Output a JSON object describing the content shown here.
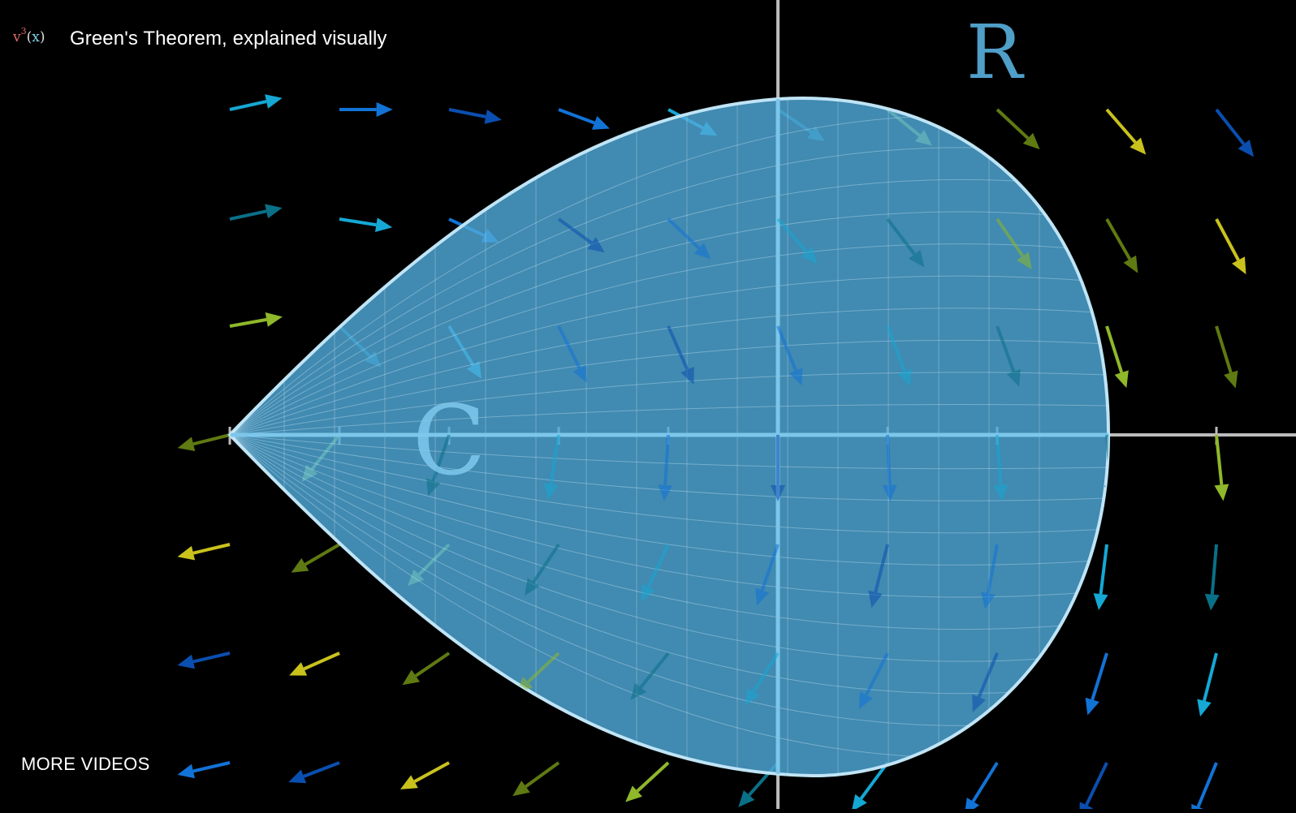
{
  "video": {
    "title": "Green's Theorem, explained visually",
    "more_videos_label": "MORE VIDEOS"
  },
  "channel_logo": {
    "base": "v",
    "exponent": "3",
    "open_paren": "(",
    "argument": "x",
    "close_paren": ")"
  },
  "scene": {
    "region_label": "R",
    "curve_label": "C",
    "colors": {
      "background": "#000000",
      "region_fill": "#4fa8d8",
      "region_outline": "#bfe4f5",
      "axes": "#bbbbbb",
      "label": "#5aa8cf"
    },
    "vector_colors": [
      "#0a4fb0",
      "#1273d6",
      "#15a8d4",
      "#0a7088",
      "#8fb82a",
      "#5f7a12",
      "#c9c21c"
    ],
    "icons": [
      "vector-field-arrow-icon"
    ]
  }
}
